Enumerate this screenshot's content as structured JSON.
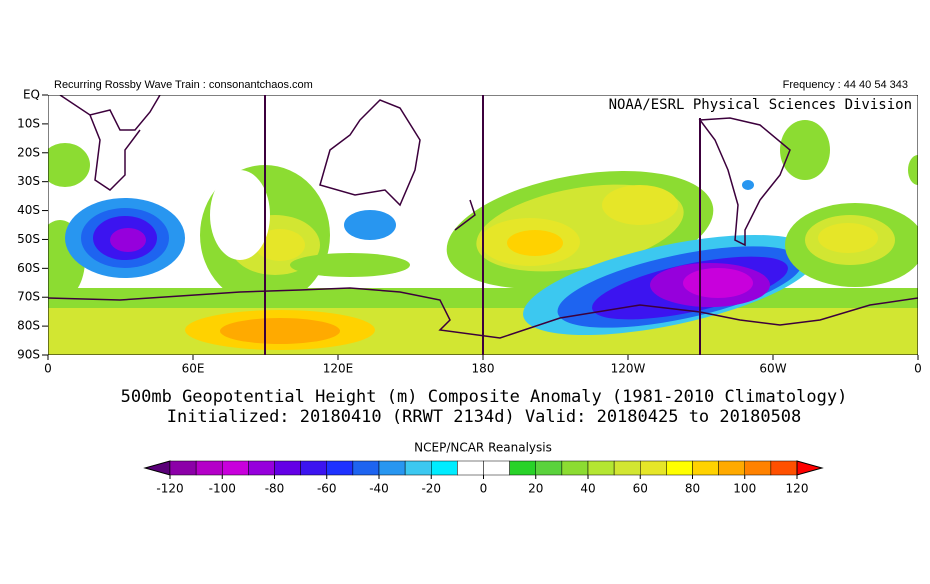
{
  "header": {
    "left": "Recurring Rossby Wave Train : consonantchaos.com",
    "right": "Frequency : 44 40 54 343"
  },
  "map": {
    "credit": "NOAA/ESRL Physical Sciences Division",
    "lat_labels": [
      "EQ",
      "10S",
      "20S",
      "30S",
      "40S",
      "50S",
      "60S",
      "70S",
      "80S",
      "90S"
    ],
    "lon_labels": [
      "0",
      "60E",
      "120E",
      "180",
      "120W",
      "60W",
      "0"
    ]
  },
  "title": {
    "line1": "500mb Geopotential Height (m) Composite Anomaly (1981-2010 Climatology)",
    "line2": "Initialized: 20180410 (RRWT 2134d) Valid: 20180425 to 20180508"
  },
  "colorbar": {
    "label": "NCEP/NCAR Reanalysis",
    "ticks": [
      -120,
      -100,
      -80,
      -60,
      -40,
      -20,
      0,
      20,
      40,
      60,
      80,
      100,
      120
    ],
    "colors": [
      "#5a0078",
      "#8c00a8",
      "#b400c8",
      "#c800dc",
      "#9600dc",
      "#6400e6",
      "#3c14f0",
      "#1e32ff",
      "#1e64f0",
      "#2896f0",
      "#3cc8f0",
      "#00ecff",
      "#ffffff",
      "#ffffff",
      "#28d228",
      "#5ad23c",
      "#8cdc32",
      "#b4e632",
      "#d2e632",
      "#e6e628",
      "#ffff00",
      "#ffd200",
      "#ffaa00",
      "#ff8200",
      "#ff5000",
      "#ff0000"
    ]
  }
}
